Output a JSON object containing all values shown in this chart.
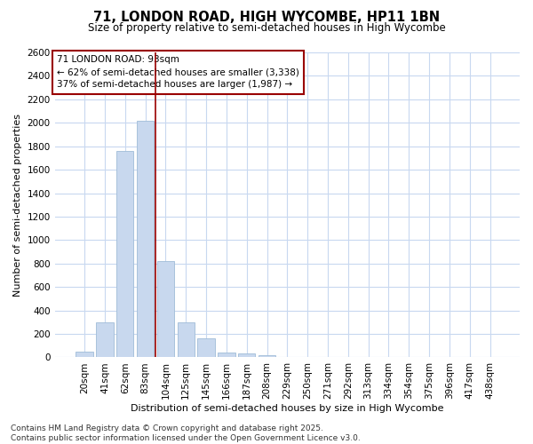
{
  "title": "71, LONDON ROAD, HIGH WYCOMBE, HP11 1BN",
  "subtitle": "Size of property relative to semi-detached houses in High Wycombe",
  "xlabel": "Distribution of semi-detached houses by size in High Wycombe",
  "ylabel": "Number of semi-detached properties",
  "categories": [
    "20sqm",
    "41sqm",
    "62sqm",
    "83sqm",
    "104sqm",
    "125sqm",
    "145sqm",
    "166sqm",
    "187sqm",
    "208sqm",
    "229sqm",
    "250sqm",
    "271sqm",
    "292sqm",
    "313sqm",
    "334sqm",
    "354sqm",
    "375sqm",
    "396sqm",
    "417sqm",
    "438sqm"
  ],
  "values": [
    50,
    300,
    1760,
    2020,
    820,
    295,
    160,
    45,
    35,
    20,
    0,
    0,
    0,
    0,
    0,
    0,
    0,
    0,
    0,
    0,
    0
  ],
  "bar_color": "#c8d8ee",
  "bar_edge_color": "#a0bcd8",
  "vline_x_index": 3.5,
  "vline_color": "#990000",
  "annotation_title": "71 LONDON ROAD: 93sqm",
  "annotation_line1": "← 62% of semi-detached houses are smaller (3,338)",
  "annotation_line2": "37% of semi-detached houses are larger (1,987) →",
  "annotation_box_color": "#ffffff",
  "annotation_box_edge": "#990000",
  "ylim": [
    0,
    2600
  ],
  "yticks": [
    0,
    200,
    400,
    600,
    800,
    1000,
    1200,
    1400,
    1600,
    1800,
    2000,
    2200,
    2400,
    2600
  ],
  "footer_line1": "Contains HM Land Registry data © Crown copyright and database right 2025.",
  "footer_line2": "Contains public sector information licensed under the Open Government Licence v3.0.",
  "bg_color": "#ffffff",
  "plot_bg_color": "#ffffff",
  "grid_color": "#c8d8f0",
  "title_fontsize": 10.5,
  "subtitle_fontsize": 8.5,
  "xlabel_fontsize": 8,
  "ylabel_fontsize": 8,
  "tick_fontsize": 7.5,
  "footer_fontsize": 6.5
}
